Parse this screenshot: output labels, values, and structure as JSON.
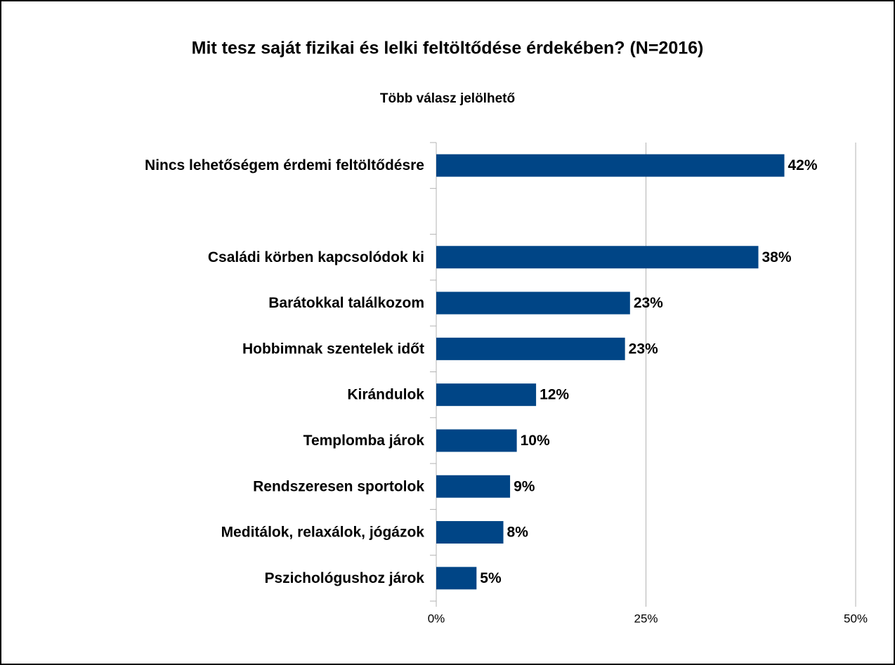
{
  "chart_data": {
    "type": "bar",
    "orientation": "horizontal",
    "title": "Mit tesz saját fizikai és lelki feltöltődése érdekében? (N=2016)",
    "subtitle": "Több válasz jelölhető",
    "categories": [
      "Nincs lehetőségem érdemi feltöltődésre",
      null,
      "Családi körben kapcsolódok ki",
      "Barátokkal találkozom",
      "Hobbimnak szentelek időt",
      "Kirándulok",
      "Templomba járok",
      "Rendszeresen sportolok",
      "Meditálok, relaxálok, jógázok",
      "Pszichológushoz járok"
    ],
    "values": [
      41.5,
      null,
      38.4,
      23.1,
      22.5,
      11.9,
      9.6,
      8.8,
      8.0,
      4.8
    ],
    "value_labels": [
      "42%",
      null,
      "38%",
      "23%",
      "23%",
      "12%",
      "10%",
      "9%",
      "8%",
      "5%"
    ],
    "color": "#004586",
    "xlim": [
      0,
      50
    ],
    "xticks": [
      {
        "value": 0,
        "label": "0%"
      },
      {
        "value": 25,
        "label": "25%"
      },
      {
        "value": 50,
        "label": "50%"
      }
    ],
    "grid": true
  }
}
